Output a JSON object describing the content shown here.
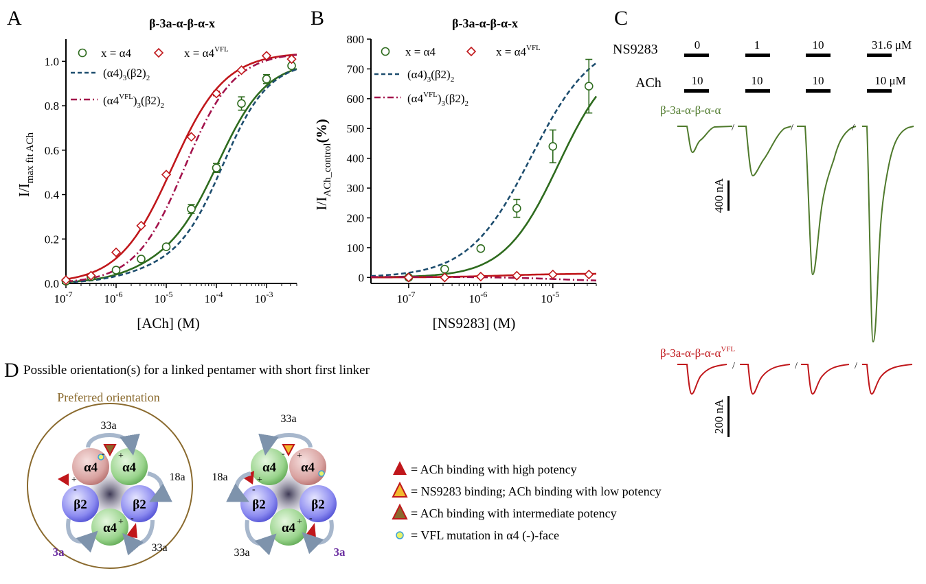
{
  "panels": {
    "A": {
      "letter": "A",
      "title": "β-3a-α-β-α-x",
      "xlabel": "[ACh] (M)",
      "ylabel_main": "I/I",
      "ylabel_sub": "max fit ACh"
    },
    "B": {
      "letter": "B",
      "title": "β-3a-α-β-α-x",
      "xlabel": "[NS9283] (M)",
      "ylabel_main": "I/I",
      "ylabel_sub": "ACh_control",
      "ylabel_unit": "(%)"
    },
    "C": {
      "letter": "C"
    },
    "D": {
      "letter": "D",
      "title": "Possible orientation(s) for a linked pentamer with short first linker"
    }
  },
  "legend": {
    "x_a4": "x = α4",
    "x_a4vfl_main": "x = α4",
    "x_a4vfl_sup": "VFL",
    "dash_label": "(α4)",
    "dash_sub3": "3",
    "dash_b2": "(β2)",
    "dash_sub2": "2",
    "dashdot_open": "(α4",
    "dashdot_sup": "VFL",
    "dashdot_close": ")",
    "dashdot_sub3": "3",
    "dashdot_b2": "(β2)",
    "dashdot_sub2": "2"
  },
  "chart_data": [
    {
      "panel": "A",
      "type": "line",
      "title": "β-3a-α-β-α-x",
      "xlabel": "[ACh] (M)",
      "ylabel": "I/I max fit ACh",
      "xscale": "log",
      "xlim": [
        1e-07,
        0.004
      ],
      "ylim": [
        0,
        1.1
      ],
      "x_ticks": [
        "10",
        "10",
        "10",
        "10",
        "10"
      ],
      "x_tick_exps": [
        "-7",
        "-6",
        "-5",
        "-4",
        "-3"
      ],
      "x_tick_vals": [
        1e-07,
        1e-06,
        1e-05,
        0.0001,
        0.001
      ],
      "y_ticks": [
        "0.0",
        "0.2",
        "0.4",
        "0.6",
        "0.8",
        "1.0"
      ],
      "y_tick_vals": [
        0,
        0.2,
        0.4,
        0.6,
        0.8,
        1.0
      ],
      "series": [
        {
          "name": "x = α4",
          "color": "#2e6b1e",
          "marker": "circle",
          "x": [
            1e-07,
            3.16e-07,
            1e-06,
            3.16e-06,
            1e-05,
            3.16e-05,
            0.0001,
            0.000316,
            0.001,
            0.00316
          ],
          "y": [
            0.01,
            0.03,
            0.06,
            0.11,
            0.165,
            0.335,
            0.52,
            0.81,
            0.92,
            0.98
          ],
          "err": [
            0.005,
            0.005,
            0.01,
            0.01,
            0.01,
            0.02,
            0.02,
            0.03,
            0.02,
            0.01
          ],
          "fit": {
            "bottom": 0.0,
            "top": 1.0,
            "ec50": 0.00011,
            "hill": 0.9,
            "w1": 0.1,
            "ec50_1": 3e-06
          }
        },
        {
          "name": "x = α4VFL",
          "color": "#c0171b",
          "marker": "diamond",
          "x": [
            1e-07,
            3.16e-07,
            1e-06,
            3.16e-06,
            1e-05,
            3.16e-05,
            0.0001,
            0.000316,
            0.001,
            0.00316
          ],
          "y": [
            0.015,
            0.035,
            0.14,
            0.26,
            0.49,
            0.66,
            0.855,
            0.96,
            1.025,
            1.01
          ],
          "err": [
            0,
            0,
            0,
            0,
            0,
            0,
            0.01,
            0,
            0,
            0
          ],
          "fit": {
            "bottom": 0.0,
            "top": 1.04,
            "ec50": 1.3e-05,
            "hill": 0.82
          }
        },
        {
          "name": "(α4)3(β2)2",
          "color": "#1d4d6e",
          "dash": "dash",
          "fit": {
            "bottom": 0.0,
            "top": 1.0,
            "ec50": 0.000135,
            "hill": 0.95,
            "w1": 0.07,
            "ec50_1": 2e-06
          }
        },
        {
          "name": "(α4VFL)3(β2)2",
          "color": "#a3134c",
          "dash": "dashdot",
          "fit": {
            "bottom": 0.0,
            "top": 1.04,
            "ec50": 2.3e-05,
            "hill": 0.88
          }
        }
      ]
    },
    {
      "panel": "B",
      "type": "line",
      "title": "β-3a-α-β-α-x",
      "xlabel": "[NS9283] (M)",
      "ylabel": "I/I ACh_control (%)",
      "xscale": "log",
      "xlim": [
        3e-08,
        4e-05
      ],
      "ylim": [
        -20,
        800
      ],
      "x_ticks": [
        "10",
        "10",
        "10"
      ],
      "x_tick_exps": [
        "-7",
        "-6",
        "-5"
      ],
      "x_tick_vals": [
        1e-07,
        1e-06,
        1e-05
      ],
      "y_ticks": [
        "0",
        "100",
        "200",
        "300",
        "400",
        "500",
        "600",
        "700",
        "800"
      ],
      "y_tick_vals": [
        0,
        100,
        200,
        300,
        400,
        500,
        600,
        700,
        800
      ],
      "series": [
        {
          "name": "x = α4",
          "color": "#2e6b1e",
          "marker": "circle",
          "x": [
            1e-07,
            3.16e-07,
            1e-06,
            3.16e-06,
            1e-05,
            3.16e-05
          ],
          "y": [
            0,
            28,
            97,
            232,
            440,
            642
          ],
          "err": [
            0,
            0,
            5,
            30,
            55,
            90
          ],
          "fit": {
            "bottom": 0,
            "top": 760,
            "ec50": 1.2e-05,
            "hill": 1.15
          }
        },
        {
          "name": "x = α4VFL",
          "color": "#c0171b",
          "marker": "diamond",
          "x": [
            1e-07,
            3.16e-07,
            1e-06,
            3.16e-06,
            1e-05,
            3.16e-05
          ],
          "y": [
            0,
            0,
            3,
            6,
            10,
            10
          ],
          "err": [
            0,
            0,
            0,
            0,
            0,
            0
          ],
          "fit": {
            "bottom": 0,
            "top": 13,
            "ec50": 2e-06,
            "hill": 1.0
          }
        },
        {
          "name": "(α4)3(β2)2",
          "color": "#1d4d6e",
          "dash": "dash",
          "fit": {
            "bottom": 0,
            "top": 810,
            "ec50": 5e-06,
            "hill": 1.0
          }
        },
        {
          "name": "(α4VFL)3(β2)2",
          "color": "#a3134c",
          "dash": "dashdot",
          "fit": {
            "bottom": 2,
            "top": -14,
            "ec50": 1.2e-05,
            "hill": 1.0
          }
        }
      ]
    }
  ],
  "panel_c": {
    "ns_label": "NS9283",
    "ach_label": "ACh",
    "ns_values": [
      "0",
      "1",
      "10",
      "31.6 μM"
    ],
    "ach_values": [
      "10",
      "10",
      "10",
      "10 μM"
    ],
    "trace1_label": "β-3a-α-β-α-α",
    "trace2_label_main": "β-3a-α-β-α-α",
    "trace2_label_sup": "VFL",
    "scale1": "400 nA",
    "scale2": "200 nA",
    "break_mark": "/",
    "trace1_color": "#4f7a2c",
    "trace2_color": "#c0171b"
  },
  "panel_d": {
    "preferred_label": "Preferred orientation",
    "left": {
      "top_arc": "33a",
      "right_arc": "18a",
      "bottom_right_arc": "33a",
      "bottom_left_arc": "3a",
      "subunits": [
        "α4",
        "α4",
        "β2",
        "α4",
        "β2"
      ]
    },
    "right": {
      "top_arc": "33a",
      "left_arc": "18a",
      "bottom_left_arc": "33a",
      "bottom_right_arc": "3a",
      "subunits": [
        "α4",
        "α4",
        "β2",
        "α4",
        "β2"
      ]
    },
    "plus": "+",
    "minus": "-",
    "legend": [
      {
        "text": "= ACh binding with high potency",
        "icon": "red-triangle"
      },
      {
        "text": "= NS9283 binding; ACh binding with low potency",
        "icon": "yellow-triangle"
      },
      {
        "text": "= ACh binding with intermediate potency",
        "icon": "olive-triangle"
      },
      {
        "text": "= VFL mutation in α4 (-)-face",
        "icon": "starburst"
      }
    ]
  }
}
